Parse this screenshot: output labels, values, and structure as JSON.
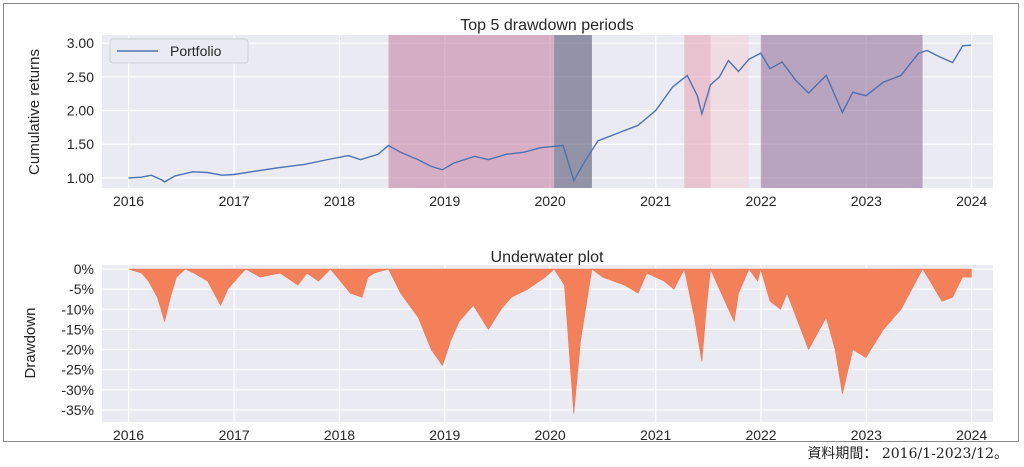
{
  "chart_data": [
    {
      "type": "line",
      "title": "Top 5 drawdown periods",
      "xlabel": "",
      "ylabel": "Cumulative returns",
      "ylim": [
        0.85,
        3.12
      ],
      "xlim": [
        "2015-10-01",
        "2024-03-15"
      ],
      "x_ticks": [
        "2016",
        "2017",
        "2018",
        "2019",
        "2020",
        "2021",
        "2022",
        "2023",
        "2024"
      ],
      "y_ticks": [
        1.0,
        1.5,
        2.0,
        2.5,
        3.0
      ],
      "y_tick_labels": [
        "1.00",
        "1.50",
        "2.00",
        "2.50",
        "3.00"
      ],
      "grid": true,
      "legend": "top-left",
      "series": [
        {
          "name": "Portfolio",
          "color": "#4c72b0",
          "points": [
            [
              "2016-01-01",
              1.0
            ],
            [
              "2016-02-15",
              1.01
            ],
            [
              "2016-03-20",
              1.04
            ],
            [
              "2016-04-25",
              0.97
            ],
            [
              "2016-05-05",
              0.94
            ],
            [
              "2016-06-10",
              1.03
            ],
            [
              "2016-08-10",
              1.09
            ],
            [
              "2016-10-01",
              1.08
            ],
            [
              "2016-11-20",
              1.04
            ],
            [
              "2016-12-31",
              1.05
            ],
            [
              "2017-03-01",
              1.09
            ],
            [
              "2017-06-01",
              1.15
            ],
            [
              "2017-09-01",
              1.2
            ],
            [
              "2017-12-01",
              1.28
            ],
            [
              "2018-02-01",
              1.33
            ],
            [
              "2018-03-15",
              1.27
            ],
            [
              "2018-05-15",
              1.35
            ],
            [
              "2018-06-20",
              1.48
            ],
            [
              "2018-08-01",
              1.38
            ],
            [
              "2018-10-01",
              1.27
            ],
            [
              "2018-11-15",
              1.17
            ],
            [
              "2018-12-24",
              1.12
            ],
            [
              "2019-02-01",
              1.22
            ],
            [
              "2019-04-15",
              1.32
            ],
            [
              "2019-06-01",
              1.27
            ],
            [
              "2019-08-01",
              1.35
            ],
            [
              "2019-10-01",
              1.38
            ],
            [
              "2019-12-01",
              1.45
            ],
            [
              "2020-02-15",
              1.48
            ],
            [
              "2020-03-23",
              0.96
            ],
            [
              "2020-05-01",
              1.25
            ],
            [
              "2020-06-15",
              1.55
            ],
            [
              "2020-09-01",
              1.68
            ],
            [
              "2020-11-01",
              1.78
            ],
            [
              "2021-01-01",
              2.0
            ],
            [
              "2021-03-01",
              2.35
            ],
            [
              "2021-04-20",
              2.52
            ],
            [
              "2021-05-25",
              2.22
            ],
            [
              "2021-06-10",
              1.95
            ],
            [
              "2021-07-10",
              2.38
            ],
            [
              "2021-08-10",
              2.5
            ],
            [
              "2021-09-10",
              2.74
            ],
            [
              "2021-10-15",
              2.58
            ],
            [
              "2021-11-20",
              2.76
            ],
            [
              "2021-12-31",
              2.85
            ],
            [
              "2022-02-01",
              2.62
            ],
            [
              "2022-03-15",
              2.72
            ],
            [
              "2022-05-01",
              2.45
            ],
            [
              "2022-06-15",
              2.26
            ],
            [
              "2022-08-15",
              2.52
            ],
            [
              "2022-10-10",
              1.97
            ],
            [
              "2022-11-15",
              2.27
            ],
            [
              "2022-12-31",
              2.22
            ],
            [
              "2023-03-01",
              2.42
            ],
            [
              "2023-05-01",
              2.52
            ],
            [
              "2023-07-01",
              2.85
            ],
            [
              "2023-07-31",
              2.89
            ],
            [
              "2023-09-01",
              2.82
            ],
            [
              "2023-10-27",
              2.71
            ],
            [
              "2023-12-01",
              2.96
            ],
            [
              "2023-12-31",
              2.97
            ]
          ]
        }
      ],
      "drawdown_periods": [
        {
          "start": "2018-06-20",
          "end": "2020-01-15",
          "color": "#c27ba0"
        },
        {
          "start": "2020-01-15",
          "end": "2020-05-25",
          "color": "#4a4a6a"
        },
        {
          "start": "2021-04-10",
          "end": "2021-07-10",
          "color": "#e8a0b4"
        },
        {
          "start": "2021-07-10",
          "end": "2021-11-20",
          "color": "#f2d0d6"
        },
        {
          "start": "2021-12-31",
          "end": "2023-07-15",
          "color": "#8e6a96"
        }
      ]
    },
    {
      "type": "area",
      "title": "Underwater plot",
      "xlabel": "",
      "ylabel": "Drawdown",
      "ylim": [
        -38,
        1
      ],
      "xlim": [
        "2015-10-01",
        "2024-03-15"
      ],
      "x_ticks": [
        "2016",
        "2017",
        "2018",
        "2019",
        "2020",
        "2021",
        "2022",
        "2023",
        "2024"
      ],
      "y_ticks": [
        0,
        -5,
        -10,
        -15,
        -20,
        -25,
        -30,
        -35
      ],
      "y_tick_labels": [
        "0%",
        "-5%",
        "-10%",
        "-15%",
        "-20%",
        "-25%",
        "-30%",
        "-35%"
      ],
      "grid": true,
      "series": [
        {
          "color": "#f4805a",
          "points": [
            [
              "2016-01-01",
              0
            ],
            [
              "2016-02-15",
              -1
            ],
            [
              "2016-03-10",
              -3
            ],
            [
              "2016-04-10",
              -7
            ],
            [
              "2016-05-05",
              -13
            ],
            [
              "2016-05-25",
              -7
            ],
            [
              "2016-06-15",
              -2
            ],
            [
              "2016-07-15",
              0
            ],
            [
              "2016-08-15",
              -1
            ],
            [
              "2016-10-01",
              -3
            ],
            [
              "2016-11-15",
              -9
            ],
            [
              "2016-12-10",
              -5
            ],
            [
              "2017-01-15",
              -2
            ],
            [
              "2017-02-10",
              0
            ],
            [
              "2017-04-01",
              -2
            ],
            [
              "2017-06-10",
              -1
            ],
            [
              "2017-08-10",
              -4
            ],
            [
              "2017-09-10",
              -1
            ],
            [
              "2017-10-20",
              -3
            ],
            [
              "2017-12-01",
              0
            ],
            [
              "2018-02-08",
              -6
            ],
            [
              "2018-03-20",
              -7
            ],
            [
              "2018-04-10",
              -2
            ],
            [
              "2018-05-01",
              -1
            ],
            [
              "2018-06-20",
              0
            ],
            [
              "2018-08-01",
              -6
            ],
            [
              "2018-10-01",
              -12
            ],
            [
              "2018-11-15",
              -20
            ],
            [
              "2018-12-24",
              -24
            ],
            [
              "2019-01-20",
              -18
            ],
            [
              "2019-02-20",
              -13
            ],
            [
              "2019-04-10",
              -9
            ],
            [
              "2019-06-01",
              -15
            ],
            [
              "2019-07-15",
              -10
            ],
            [
              "2019-08-20",
              -7
            ],
            [
              "2019-10-15",
              -5
            ],
            [
              "2019-12-15",
              -2
            ],
            [
              "2020-01-15",
              0
            ],
            [
              "2020-02-20",
              -4
            ],
            [
              "2020-03-23",
              -36
            ],
            [
              "2020-04-15",
              -18
            ],
            [
              "2020-05-25",
              0
            ],
            [
              "2020-07-01",
              -2
            ],
            [
              "2020-09-15",
              -4
            ],
            [
              "2020-11-01",
              -6
            ],
            [
              "2020-12-01",
              -1
            ],
            [
              "2021-01-30",
              -3
            ],
            [
              "2021-03-05",
              -5
            ],
            [
              "2021-04-10",
              0
            ],
            [
              "2021-05-15",
              -12
            ],
            [
              "2021-06-10",
              -23
            ],
            [
              "2021-06-25",
              -10
            ],
            [
              "2021-07-10",
              0
            ],
            [
              "2021-08-10",
              -5
            ],
            [
              "2021-09-30",
              -13
            ],
            [
              "2021-10-15",
              -6
            ],
            [
              "2021-11-20",
              0
            ],
            [
              "2021-12-20",
              -3
            ],
            [
              "2021-12-31",
              0
            ],
            [
              "2022-02-01",
              -8
            ],
            [
              "2022-03-10",
              -10
            ],
            [
              "2022-04-01",
              -6
            ],
            [
              "2022-06-15",
              -20
            ],
            [
              "2022-08-15",
              -12
            ],
            [
              "2022-09-15",
              -20
            ],
            [
              "2022-10-10",
              -31
            ],
            [
              "2022-11-15",
              -20
            ],
            [
              "2022-12-31",
              -22
            ],
            [
              "2023-03-01",
              -15
            ],
            [
              "2023-05-01",
              -10
            ],
            [
              "2023-07-15",
              0
            ],
            [
              "2023-08-10",
              -3
            ],
            [
              "2023-09-20",
              -8
            ],
            [
              "2023-10-27",
              -7
            ],
            [
              "2023-11-30",
              -2
            ],
            [
              "2023-12-31",
              -2
            ]
          ]
        }
      ]
    }
  ],
  "caption": "資料期間： 2016/1-2023/12。"
}
